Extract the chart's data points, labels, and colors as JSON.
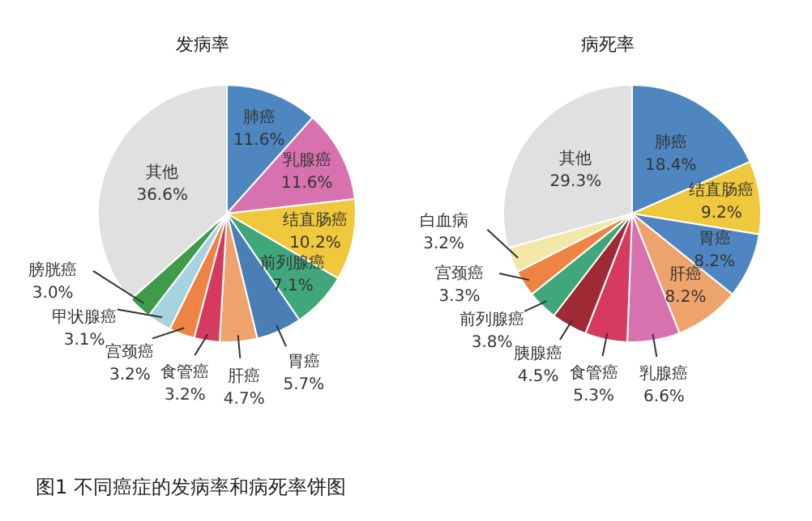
{
  "chart_data": [
    {
      "type": "pie",
      "title": "发病率",
      "categories": [
        "肺癌",
        "乳腺癌",
        "结直肠癌",
        "前列腺癌",
        "胃癌",
        "肝癌",
        "食管癌",
        "宫颈癌",
        "甲状腺癌",
        "膀胱癌",
        "其他"
      ],
      "values": [
        11.6,
        11.6,
        10.2,
        7.1,
        5.7,
        4.7,
        3.2,
        3.2,
        3.1,
        3.0,
        36.6
      ],
      "value_labels": [
        "11.6%",
        "11.6%",
        "10.2%",
        "7.1%",
        "5.7%",
        "4.7%",
        "3.2%",
        "3.2%",
        "3.1%",
        "3.0%",
        "36.6%"
      ],
      "colors": [
        "#4e86c0",
        "#d872ae",
        "#f0c83c",
        "#3fa77a",
        "#4a7fb5",
        "#eea36c",
        "#d63a5e",
        "#ee8343",
        "#a6d3e0",
        "#3f9a4a",
        "#e0e0e0"
      ],
      "legend": false,
      "annotations": [
        "图1 不同癌症的发病率和病死率饼图"
      ]
    },
    {
      "type": "pie",
      "title": "病死率",
      "categories": [
        "肺癌",
        "结直肠癌",
        "胃癌",
        "肝癌",
        "乳腺癌",
        "食管癌",
        "胰腺癌",
        "前列腺癌",
        "宫颈癌",
        "白血病",
        "其他"
      ],
      "values": [
        18.4,
        9.2,
        8.2,
        8.2,
        6.6,
        5.3,
        4.5,
        3.8,
        3.3,
        3.2,
        29.3
      ],
      "value_labels": [
        "18.4%",
        "9.2%",
        "8.2%",
        "8.2%",
        "6.6%",
        "5.3%",
        "4.5%",
        "3.8%",
        "3.3%",
        "3.2%",
        "29.3%"
      ],
      "colors": [
        "#4e86c0",
        "#f0c83c",
        "#4f86c1",
        "#eea36c",
        "#d872ae",
        "#d63a5e",
        "#9e2a35",
        "#3fa77a",
        "#ee8343",
        "#f3e7a6",
        "#e0e0e0"
      ],
      "legend": false
    }
  ]
}
